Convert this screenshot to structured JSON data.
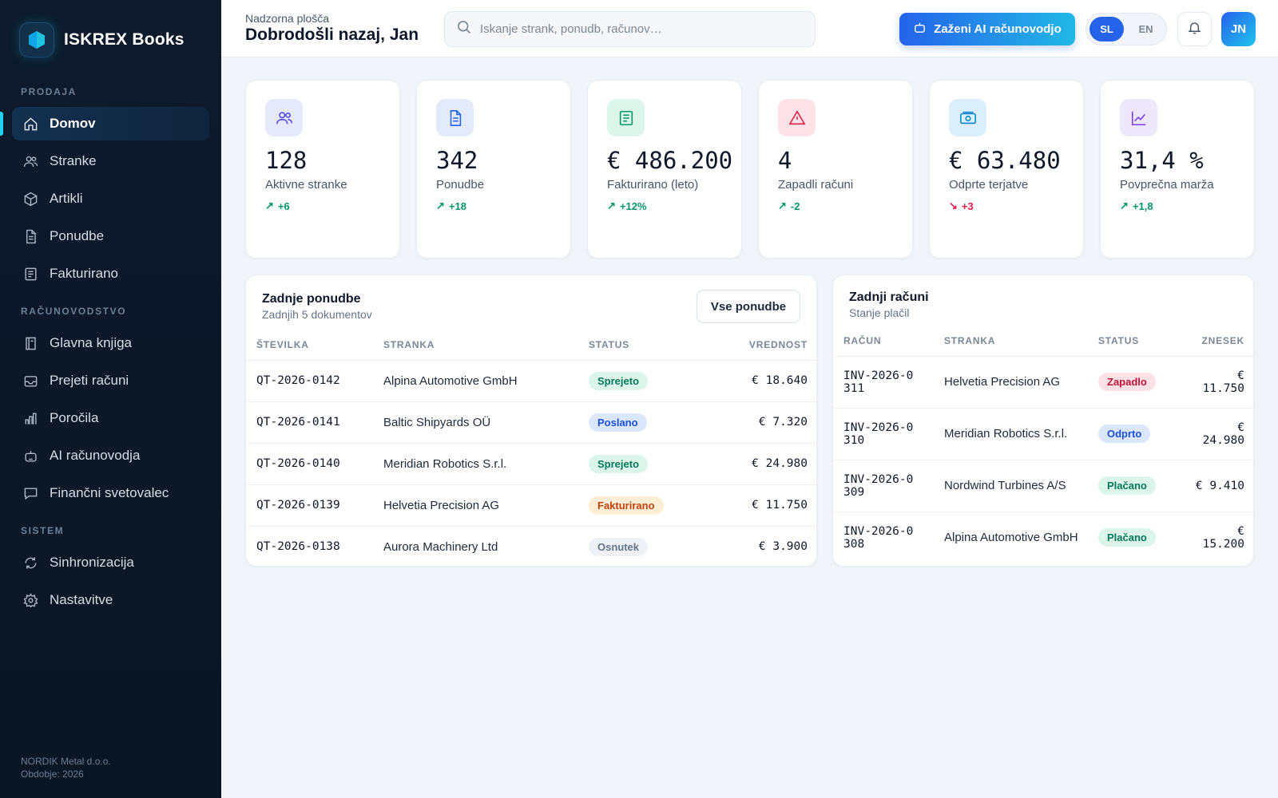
{
  "app": {
    "name": "ISKREX Books"
  },
  "sidebar": {
    "sections": [
      {
        "title": "PRODAJA"
      },
      {
        "title": "RAČUNOVODSTVO"
      },
      {
        "title": "SISTEM"
      }
    ],
    "items": [
      {
        "label": "Domov",
        "icon": "home-icon",
        "active": true
      },
      {
        "label": "Stranke",
        "icon": "users-icon"
      },
      {
        "label": "Artikli",
        "icon": "box-icon"
      },
      {
        "label": "Ponudbe",
        "icon": "document-icon"
      },
      {
        "label": "Fakturirano",
        "icon": "receipt-icon"
      },
      {
        "label": "Glavna knjiga",
        "icon": "book-icon"
      },
      {
        "label": "Prejeti računi",
        "icon": "inbox-icon"
      },
      {
        "label": "Poročila",
        "icon": "bar-chart-icon"
      },
      {
        "label": "AI računovodja",
        "icon": "robot-icon"
      },
      {
        "label": "Finančni svetovalec",
        "icon": "chat-icon"
      },
      {
        "label": "Sinhronizacija",
        "icon": "sync-icon"
      },
      {
        "label": "Nastavitve",
        "icon": "gear-icon"
      }
    ],
    "footer": {
      "company": "NORDIK Metal d.o.o.",
      "period": "Obdobje: 2026"
    }
  },
  "header": {
    "breadcrumb": "Nadzorna plošča",
    "welcome": "Dobrodošli nazaj, Jan",
    "search_placeholder": "Iskanje strank, ponudb, računov…",
    "ai_button": "Zaženi AI računovodjo",
    "languages": [
      "SL",
      "EN"
    ],
    "selected_language": "SL",
    "avatar_initials": "JN"
  },
  "kpis": [
    {
      "value": "128",
      "label": "Aktivne stranke",
      "delta": "+6",
      "trend": "up",
      "icon": "users-icon",
      "bg": "#e6e9fb",
      "fg": "#4f46e5"
    },
    {
      "value": "342",
      "label": "Ponudbe",
      "delta": "+18",
      "trend": "up",
      "icon": "document-icon",
      "bg": "#e3ebfb",
      "fg": "#2563eb"
    },
    {
      "value": "€ 486.200",
      "label": "Fakturirano (leto)",
      "delta": "+12%",
      "trend": "up",
      "icon": "receipt-icon",
      "bg": "#dcf5ea",
      "fg": "#059669"
    },
    {
      "value": "4",
      "label": "Zapadli računi",
      "delta": "-2",
      "trend": "up",
      "icon": "warning-icon",
      "bg": "#fde3e7",
      "fg": "#e11d48"
    },
    {
      "value": "€ 63.480",
      "label": "Odprte terjatve",
      "delta": "+3",
      "trend": "down",
      "icon": "cash-icon",
      "bg": "#daeffb",
      "fg": "#0284c7"
    },
    {
      "value": "31,4 %",
      "label": "Povprečna marža",
      "delta": "+1,8",
      "trend": "up",
      "icon": "trend-up-icon",
      "bg": "#ece7fb",
      "fg": "#7c3aed"
    }
  ],
  "quotes": {
    "title": "Zadnje ponudbe",
    "subtitle": "Zadnjih 5 dokumentov",
    "button": "Vse ponudbe",
    "columns": [
      "ŠTEVILKA",
      "STRANKA",
      "STATUS",
      "VREDNOST"
    ],
    "rows": [
      {
        "number": "QT-2026-0142",
        "client": "Alpina Automotive GmbH",
        "status": "Sprejeto",
        "tone": "green",
        "value": "€ 18.640"
      },
      {
        "number": "QT-2026-0141",
        "client": "Baltic Shipyards OÜ",
        "status": "Poslano",
        "tone": "blue",
        "value": "€ 7.320"
      },
      {
        "number": "QT-2026-0140",
        "client": "Meridian Robotics S.r.l.",
        "status": "Sprejeto",
        "tone": "green",
        "value": "€ 24.980"
      },
      {
        "number": "QT-2026-0139",
        "client": "Helvetia Precision AG",
        "status": "Fakturirano",
        "tone": "orange",
        "value": "€ 11.750"
      },
      {
        "number": "QT-2026-0138",
        "client": "Aurora Machinery Ltd",
        "status": "Osnutek",
        "tone": "gray",
        "value": "€ 3.900"
      }
    ]
  },
  "invoices": {
    "title": "Zadnji računi",
    "subtitle": "Stanje plačil",
    "columns": [
      "RAČUN",
      "STRANKA",
      "STATUS",
      "ZNESEK"
    ],
    "rows": [
      {
        "number": "INV-2026-0311",
        "client": "Helvetia Precision AG",
        "status": "Zapadlo",
        "tone": "red",
        "amount": "€ 11.750"
      },
      {
        "number": "INV-2026-0310",
        "client": "Meridian Robotics S.r.l.",
        "status": "Odprto",
        "tone": "blue",
        "amount": "€ 24.980"
      },
      {
        "number": "INV-2026-0309",
        "client": "Nordwind Turbines A/S",
        "status": "Plačano",
        "tone": "green",
        "amount": "€ 9.410"
      },
      {
        "number": "INV-2026-0308",
        "client": "Alpina Automotive GmbH",
        "status": "Plačano",
        "tone": "green",
        "amount": "€ 15.200"
      }
    ]
  },
  "colors": {
    "accent": "#2563eb",
    "sidebar_bg": "#0c1a2c",
    "cyan": "#22d3ee"
  }
}
